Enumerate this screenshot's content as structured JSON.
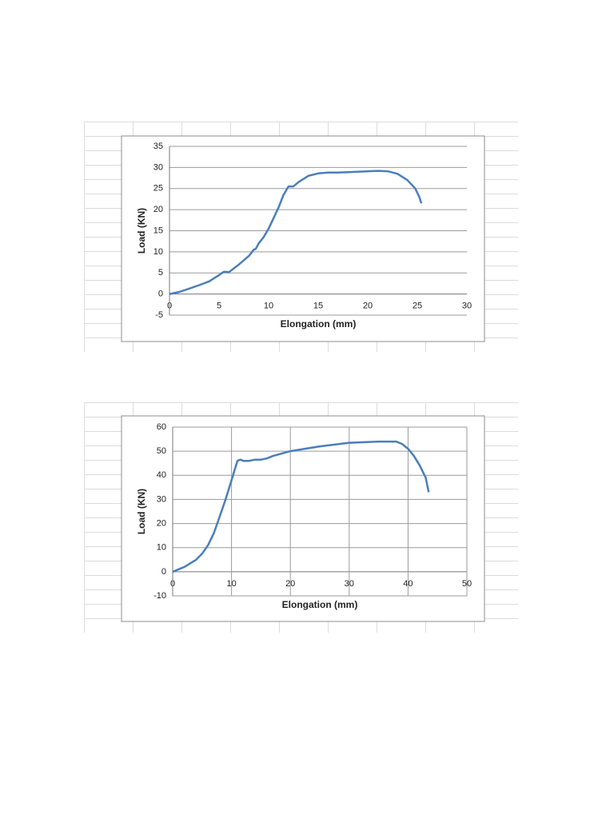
{
  "chart_data": [
    {
      "type": "line",
      "x_label": "Elongation (mm)",
      "y_label": "Load (KN)",
      "xlim": [
        0,
        30
      ],
      "xticks": [
        0,
        5,
        10,
        15,
        20,
        25,
        30
      ],
      "ylim": [
        -5,
        35
      ],
      "yticks": [
        -5,
        0,
        5,
        10,
        15,
        20,
        25,
        30,
        35
      ],
      "grid_x": false,
      "grid_y": true,
      "series": [
        {
          "color": "#4a7ebb",
          "x": [
            0,
            1,
            2,
            3,
            4,
            5,
            5.5,
            6,
            7,
            8,
            8.5,
            8.7,
            9,
            9.5,
            10,
            10.5,
            11,
            11.5,
            12,
            12.5,
            13,
            14,
            15,
            16,
            17,
            18,
            19,
            20,
            21,
            22,
            23,
            24,
            24.8,
            25.2,
            25.4
          ],
          "values": [
            0,
            0.5,
            1.3,
            2.1,
            3,
            4.5,
            5.3,
            5.2,
            7,
            9,
            10.5,
            10.7,
            12,
            13.5,
            15.5,
            18,
            20.5,
            23.5,
            25.5,
            25.5,
            26.5,
            28,
            28.6,
            28.8,
            28.8,
            28.9,
            29,
            29.1,
            29.2,
            29.1,
            28.5,
            27,
            25,
            23,
            21.5
          ]
        }
      ]
    },
    {
      "type": "line",
      "x_label": "Elongation (mm)",
      "y_label": "Load (KN)",
      "xlim": [
        0,
        50
      ],
      "xticks": [
        0,
        10,
        20,
        30,
        40,
        50
      ],
      "ylim": [
        -10,
        60
      ],
      "yticks": [
        -10,
        0,
        10,
        20,
        30,
        40,
        50,
        60
      ],
      "grid_x": true,
      "grid_y": true,
      "series": [
        {
          "color": "#4a7ebb",
          "x": [
            0,
            1,
            2,
            3,
            4,
            5,
            6,
            7,
            8,
            9,
            10,
            10.5,
            11,
            11.5,
            12,
            13,
            14,
            15,
            16,
            17,
            20,
            25,
            30,
            35,
            38,
            39,
            40,
            41,
            42,
            43,
            43.5
          ],
          "values": [
            0,
            1,
            2,
            3.5,
            5,
            7.5,
            11,
            16,
            23,
            30,
            38,
            42,
            46,
            46.5,
            46,
            46,
            46.5,
            46.5,
            47,
            48,
            50,
            52,
            53.5,
            54,
            54,
            53,
            51,
            48,
            44,
            39,
            33
          ]
        }
      ]
    }
  ]
}
